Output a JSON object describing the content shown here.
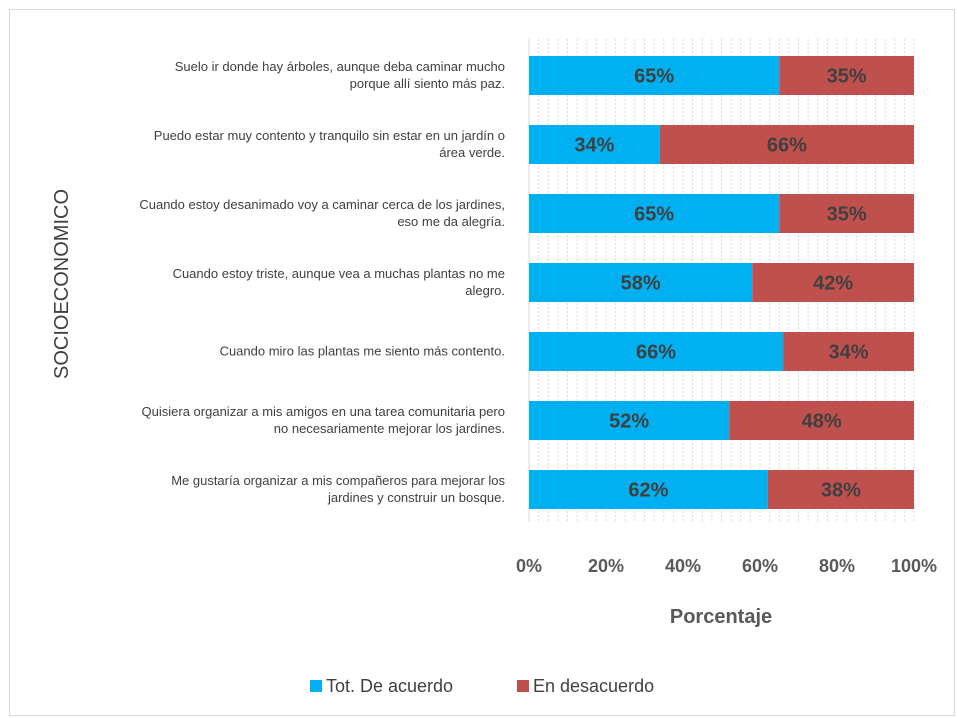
{
  "chart_data": {
    "type": "bar",
    "orientation": "horizontal",
    "stacked": "100%",
    "categories": [
      [
        "Suelo ir donde hay árboles, aunque deba caminar mucho",
        "porque allí siento más paz."
      ],
      [
        "Puedo estar muy contento y tranquilo sin estar en un jardín o",
        "área verde."
      ],
      [
        "Cuando estoy desanimado voy a caminar cerca de los jardines,",
        "eso me da alegría."
      ],
      [
        "Cuando estoy triste, aunque vea a muchas plantas no me",
        "alegro."
      ],
      [
        "Cuando miro las plantas me siento más contento."
      ],
      [
        "Quisiera organizar a mis amigos en una tarea comunitaria pero",
        "no necesariamente mejorar los jardines."
      ],
      [
        "Me gustaría organizar a mis compañeros para mejorar los",
        "jardines y construir un bosque."
      ]
    ],
    "series": [
      {
        "name": "Tot. De acuerdo",
        "color": "#00b0f0",
        "values": [
          65,
          34,
          65,
          58,
          66,
          52,
          62
        ],
        "labels": [
          "65%",
          "34%",
          "65%",
          "58%",
          "66%",
          "52%",
          "62%"
        ]
      },
      {
        "name": "En desacuerdo",
        "color": "#c0504d",
        "values": [
          35,
          66,
          35,
          42,
          34,
          48,
          38
        ],
        "labels": [
          "35%",
          "66%",
          "35%",
          "42%",
          "34%",
          "48%",
          "38%"
        ]
      }
    ],
    "xticks": [
      "0%",
      "20%",
      "40%",
      "60%",
      "80%",
      "100%"
    ],
    "xlim": [
      0,
      100
    ],
    "xlabel": "Porcentaje",
    "ylabel": "SOCIOECONOMICO",
    "grid": "vertical dashed",
    "legend": "bottom"
  }
}
